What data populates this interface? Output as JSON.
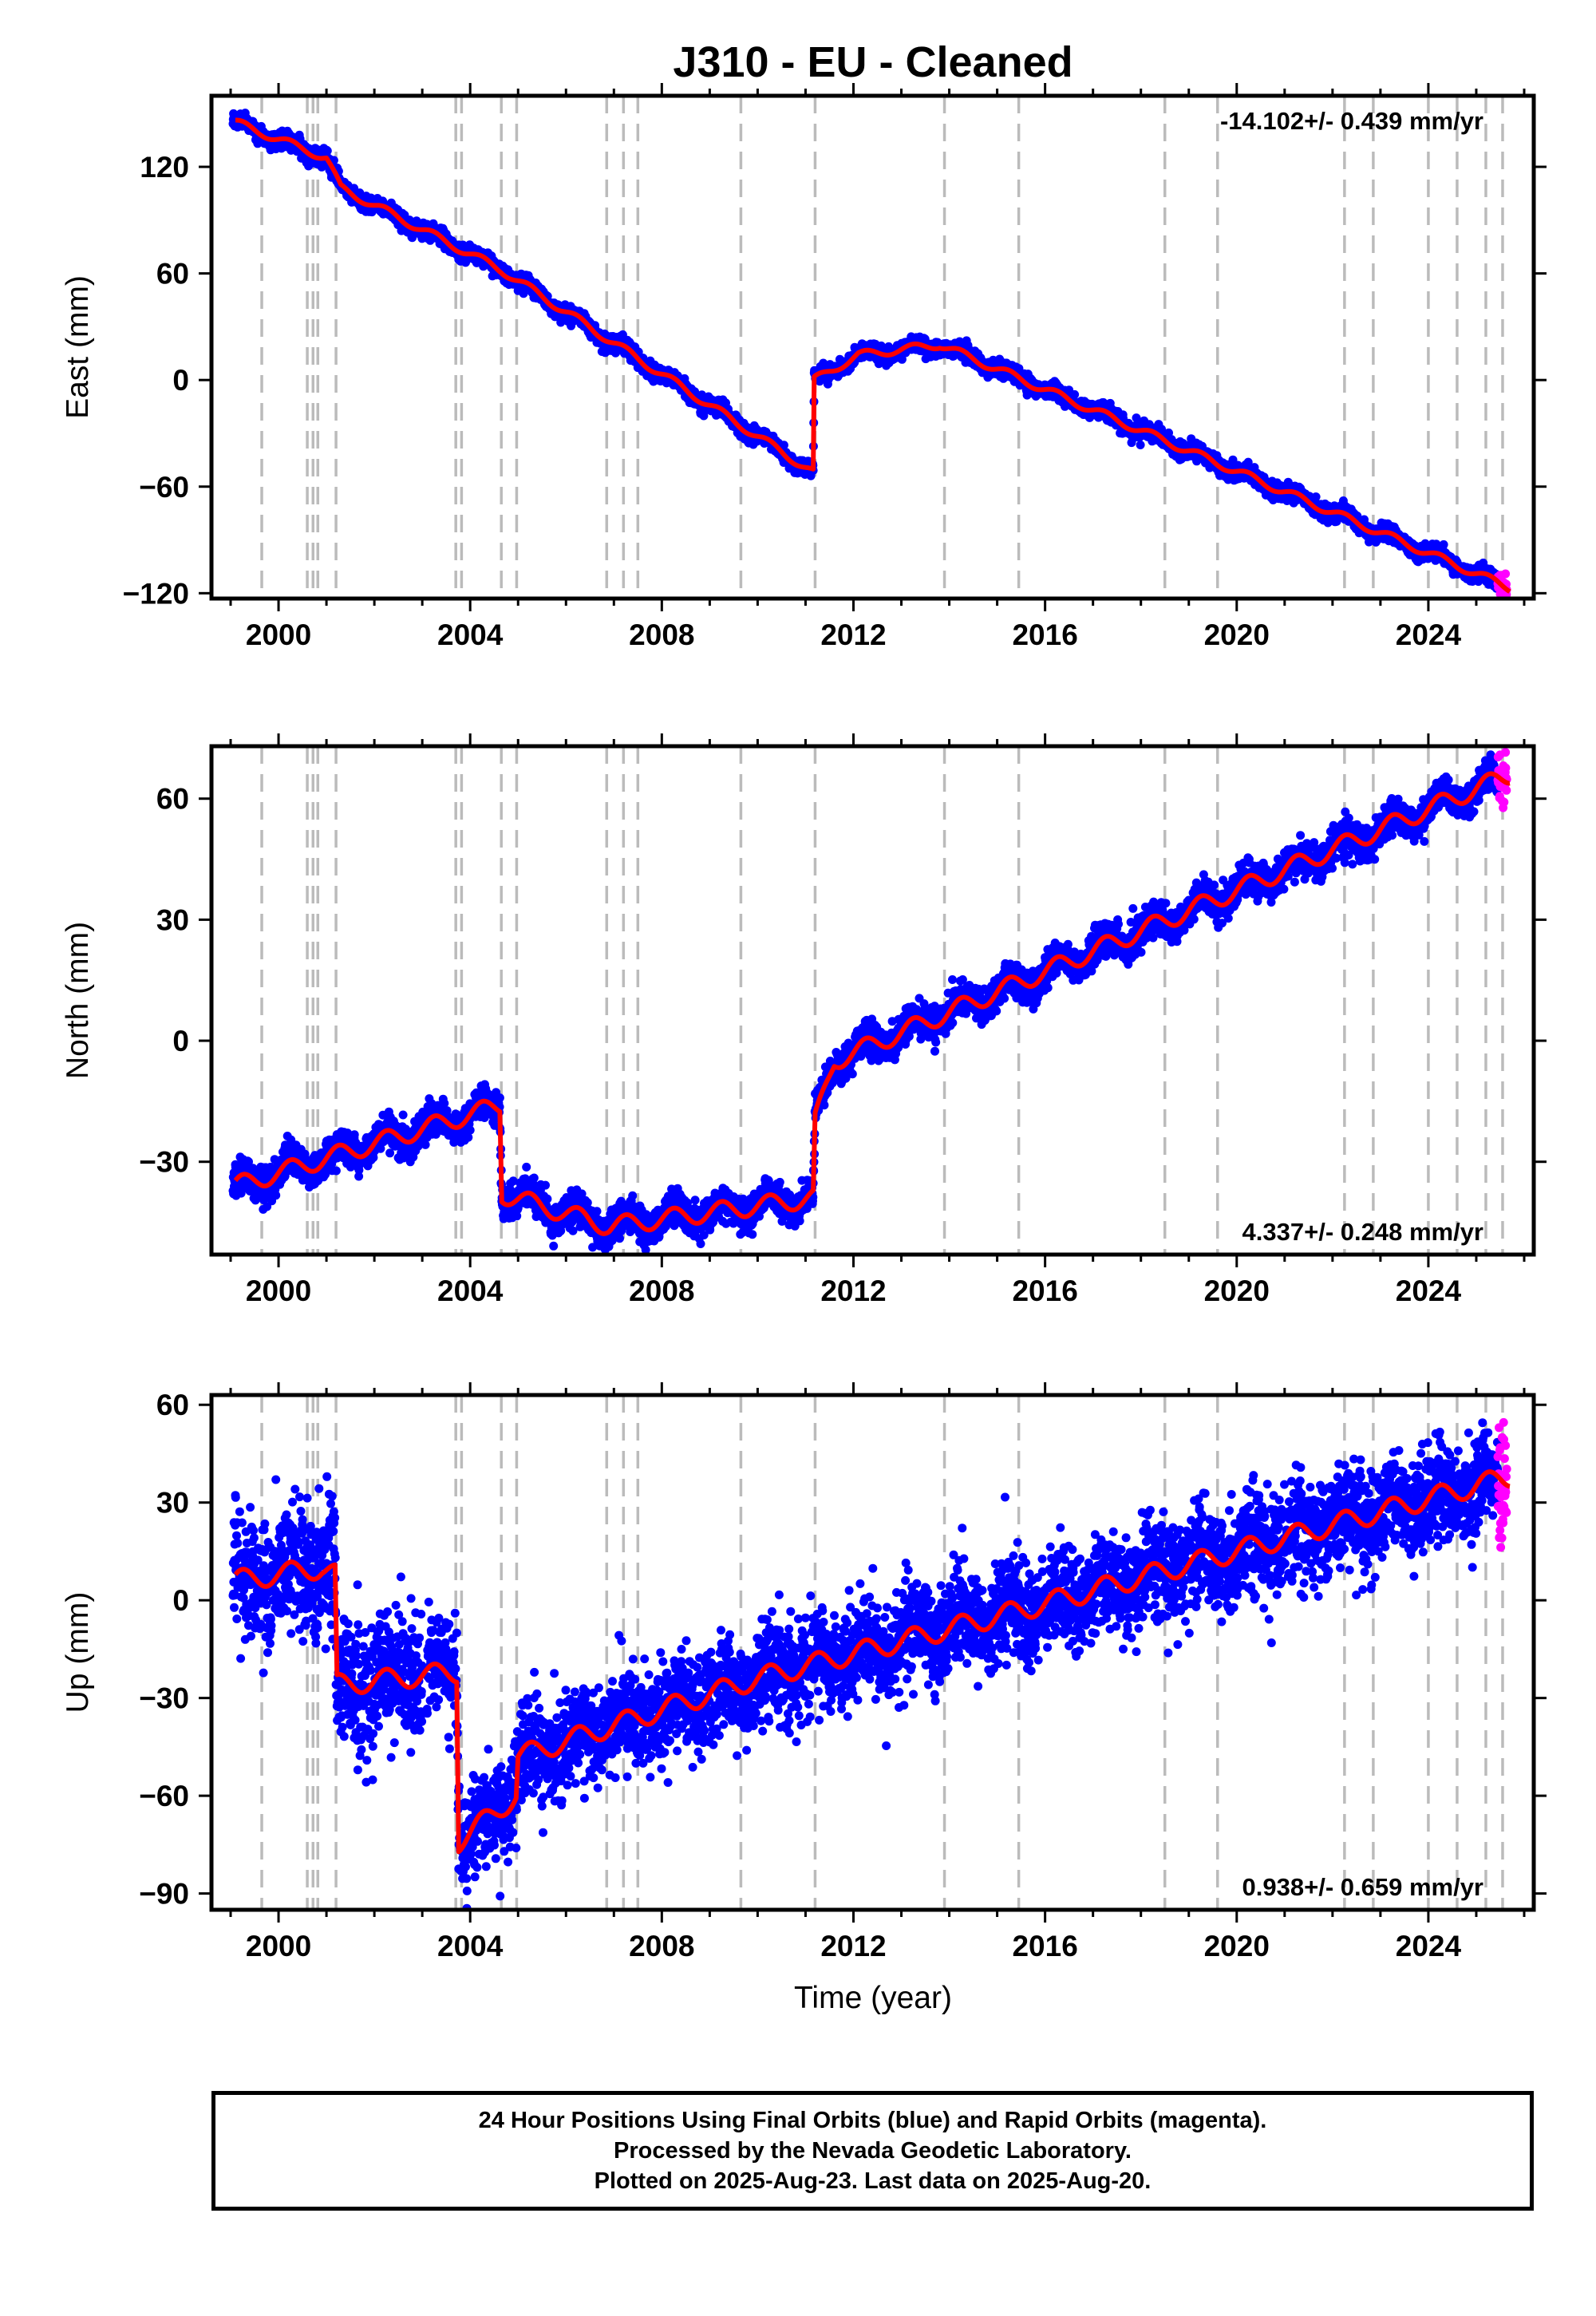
{
  "title": "J310  - EU - Cleaned",
  "xlabel": "Time (year)",
  "footer": {
    "line1": "24 Hour Positions Using Final Orbits (blue) and Rapid Orbits (magenta).",
    "line2": "Processed by the Nevada Geodetic Laboratory.",
    "line3": "Plotted on 2025-Aug-23. Last data on 2025-Aug-20."
  },
  "colors": {
    "final_orbits": "#0000ff",
    "rapid_orbits": "#ff00ff",
    "model": "#ff0000",
    "event_lines": "#bbbbbb"
  },
  "chart_data": [
    {
      "type": "scatter",
      "component": "East",
      "ylabel": "East (mm)",
      "rate_label": "-14.102+/- 0.439 mm/yr",
      "rate_position": "top-right",
      "xlim": [
        1998.6,
        2026.2
      ],
      "ylim": [
        -123,
        160
      ],
      "x_ticks": [
        2000,
        2004,
        2008,
        2012,
        2016,
        2020,
        2024
      ],
      "y_ticks": [
        120,
        60,
        0,
        -60,
        -120
      ],
      "y_tick_labels": [
        "120",
        "60",
        "0",
        "−60",
        "−120"
      ],
      "event_lines": [
        1999.65,
        2000.6,
        2000.72,
        2000.82,
        2001.2,
        2003.7,
        2003.82,
        2004.65,
        2004.97,
        2006.85,
        2007.2,
        2007.5,
        2009.65,
        2011.2,
        2013.9,
        2015.45,
        2018.5,
        2019.6,
        2022.25,
        2022.85,
        2024.0,
        2024.6,
        2025.2,
        2025.55
      ],
      "model": {
        "base_points": [
          [
            1999.1,
            145
          ],
          [
            2001.0,
            125
          ],
          [
            2001.3,
            108
          ],
          [
            2004.65,
            62
          ],
          [
            2011.16,
            -52
          ],
          [
            2011.18,
            0
          ],
          [
            2012.1,
            14
          ],
          [
            2013.8,
            20
          ],
          [
            2025.7,
            -117
          ]
        ],
        "seasonal_amplitude": 2.2,
        "noise": 2.2
      },
      "series": [
        {
          "name": "Final orbits (blue)",
          "t_start": 1999.05,
          "t_end": 2025.45,
          "t_step": 0.005
        },
        {
          "name": "Rapid orbits (magenta)",
          "t_start": 2025.45,
          "t_end": 2025.64,
          "t_step": 0.005
        }
      ]
    },
    {
      "type": "scatter",
      "component": "North",
      "ylabel": "North (mm)",
      "rate_label": "4.337+/- 0.248 mm/yr",
      "rate_position": "bottom-right",
      "xlim": [
        1998.6,
        2026.2
      ],
      "ylim": [
        -53,
        73
      ],
      "x_ticks": [
        2000,
        2004,
        2008,
        2012,
        2016,
        2020,
        2024
      ],
      "y_ticks": [
        60,
        30,
        0,
        -30
      ],
      "y_tick_labels": [
        "60",
        "30",
        "0",
        "−30"
      ],
      "event_lines": [
        1999.65,
        2000.6,
        2000.72,
        2000.82,
        2001.2,
        2003.7,
        2003.82,
        2004.65,
        2004.97,
        2006.85,
        2007.2,
        2007.5,
        2009.65,
        2011.2,
        2013.9,
        2015.45,
        2018.5,
        2019.6,
        2022.25,
        2022.85,
        2024.0,
        2024.6,
        2025.2,
        2025.55
      ],
      "model": {
        "base_points": [
          [
            1999.1,
            -36
          ],
          [
            2004.62,
            -16
          ],
          [
            2004.66,
            -38
          ],
          [
            2006.9,
            -46
          ],
          [
            2011.16,
            -39
          ],
          [
            2011.2,
            -20
          ],
          [
            2011.6,
            -5
          ],
          [
            2025.7,
            66
          ]
        ],
        "seasonal_amplitude": 2.3,
        "noise": 2.0
      },
      "series": [
        {
          "name": "Final orbits (blue)",
          "t_start": 1999.05,
          "t_end": 2025.45,
          "t_step": 0.005
        },
        {
          "name": "Rapid orbits (magenta)",
          "t_start": 2025.45,
          "t_end": 2025.64,
          "t_step": 0.005
        }
      ]
    },
    {
      "type": "scatter",
      "component": "Up",
      "ylabel": "Up (mm)",
      "rate_label": "0.938+/- 0.659 mm/yr",
      "rate_position": "bottom-right",
      "xlim": [
        1998.6,
        2026.2
      ],
      "ylim": [
        -95,
        63
      ],
      "x_ticks": [
        2000,
        2004,
        2008,
        2012,
        2016,
        2020,
        2024
      ],
      "y_ticks": [
        60,
        30,
        0,
        -30,
        -60,
        -90
      ],
      "y_tick_labels": [
        "60",
        "30",
        "0",
        "−30",
        "−60",
        "−90"
      ],
      "event_lines": [
        1999.65,
        2000.6,
        2000.72,
        2000.82,
        2001.2,
        2003.7,
        2003.82,
        2004.65,
        2004.97,
        2006.85,
        2007.2,
        2007.5,
        2009.65,
        2011.2,
        2013.9,
        2015.45,
        2018.5,
        2019.6,
        2022.25,
        2022.85,
        2024.0,
        2024.6,
        2025.2,
        2025.55
      ],
      "model": {
        "base_points": [
          [
            1999.1,
            6
          ],
          [
            2000.9,
            10
          ],
          [
            2001.18,
            8
          ],
          [
            2001.22,
            -26
          ],
          [
            2003.72,
            -22
          ],
          [
            2003.76,
            -74
          ],
          [
            2004.96,
            -60
          ],
          [
            2005.0,
            -48
          ],
          [
            2010.0,
            -24
          ],
          [
            2015.5,
            -3
          ],
          [
            2025.7,
            38
          ]
        ],
        "seasonal_amplitude": 3.2,
        "noise": 7.5
      },
      "series": [
        {
          "name": "Final orbits (blue)",
          "t_start": 1999.05,
          "t_end": 2025.45,
          "t_step": 0.005,
          "gap": [
            2003.0,
            2003.1
          ]
        },
        {
          "name": "Rapid orbits (magenta)",
          "t_start": 2025.45,
          "t_end": 2025.64,
          "t_step": 0.005
        }
      ]
    }
  ]
}
